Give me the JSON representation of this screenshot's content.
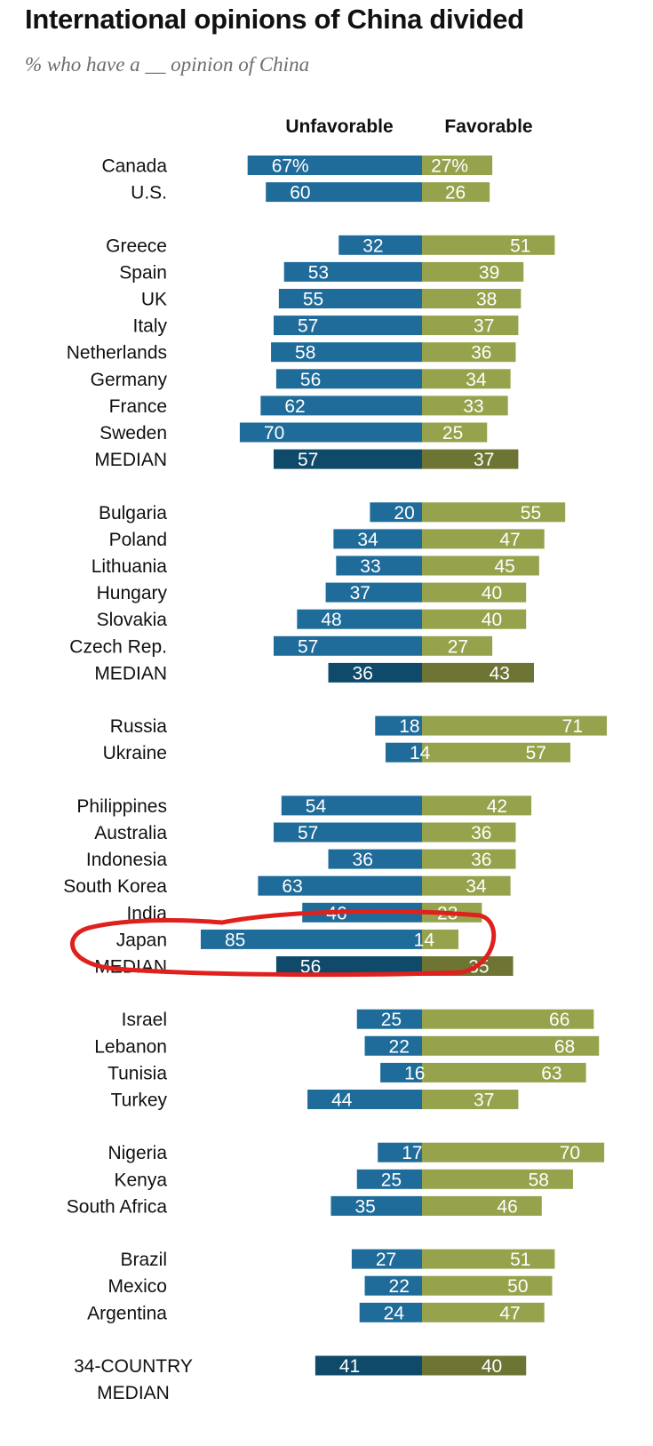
{
  "header": {
    "title": "International opinions of China divided",
    "subtitle": "% who have a __ opinion of China"
  },
  "colors": {
    "unfavorable": "#1f6b9a",
    "favorable": "#97a24c",
    "unfavorable_median": "#0f4a6b",
    "favorable_median": "#6e7434",
    "annotation": "#e0201c"
  },
  "chart_data": {
    "type": "bar",
    "orientation": "horizontal-diverging",
    "title": "International opinions of China divided",
    "subtitle": "% who have a __ opinion of China",
    "series": [
      {
        "name": "Unfavorable",
        "key": "unfav"
      },
      {
        "name": "Favorable",
        "key": "fav"
      }
    ],
    "value_suffix_first_row": "%",
    "groups": [
      {
        "rows": [
          {
            "label": "Canada",
            "unfav": 67,
            "fav": 27
          },
          {
            "label": "U.S.",
            "unfav": 60,
            "fav": 26
          }
        ]
      },
      {
        "rows": [
          {
            "label": "Greece",
            "unfav": 32,
            "fav": 51
          },
          {
            "label": "Spain",
            "unfav": 53,
            "fav": 39
          },
          {
            "label": "UK",
            "unfav": 55,
            "fav": 38
          },
          {
            "label": "Italy",
            "unfav": 57,
            "fav": 37
          },
          {
            "label": "Netherlands",
            "unfav": 58,
            "fav": 36
          },
          {
            "label": "Germany",
            "unfav": 56,
            "fav": 34
          },
          {
            "label": "France",
            "unfav": 62,
            "fav": 33
          },
          {
            "label": "Sweden",
            "unfav": 70,
            "fav": 25
          },
          {
            "label": "MEDIAN",
            "unfav": 57,
            "fav": 37,
            "median": true
          }
        ]
      },
      {
        "rows": [
          {
            "label": "Bulgaria",
            "unfav": 20,
            "fav": 55
          },
          {
            "label": "Poland",
            "unfav": 34,
            "fav": 47
          },
          {
            "label": "Lithuania",
            "unfav": 33,
            "fav": 45
          },
          {
            "label": "Hungary",
            "unfav": 37,
            "fav": 40
          },
          {
            "label": "Slovakia",
            "unfav": 48,
            "fav": 40
          },
          {
            "label": "Czech Rep.",
            "unfav": 57,
            "fav": 27
          },
          {
            "label": "MEDIAN",
            "unfav": 36,
            "fav": 43,
            "median": true
          }
        ]
      },
      {
        "rows": [
          {
            "label": "Russia",
            "unfav": 18,
            "fav": 71
          },
          {
            "label": "Ukraine",
            "unfav": 14,
            "fav": 57
          }
        ]
      },
      {
        "rows": [
          {
            "label": "Philippines",
            "unfav": 54,
            "fav": 42
          },
          {
            "label": "Australia",
            "unfav": 57,
            "fav": 36
          },
          {
            "label": "Indonesia",
            "unfav": 36,
            "fav": 36
          },
          {
            "label": "South Korea",
            "unfav": 63,
            "fav": 34
          },
          {
            "label": "India",
            "unfav": 46,
            "fav": 23
          },
          {
            "label": "Japan",
            "unfav": 85,
            "fav": 14,
            "highlight": true
          },
          {
            "label": "MEDIAN",
            "unfav": 56,
            "fav": 35,
            "median": true
          }
        ]
      },
      {
        "rows": [
          {
            "label": "Israel",
            "unfav": 25,
            "fav": 66
          },
          {
            "label": "Lebanon",
            "unfav": 22,
            "fav": 68
          },
          {
            "label": "Tunisia",
            "unfav": 16,
            "fav": 63
          },
          {
            "label": "Turkey",
            "unfav": 44,
            "fav": 37
          }
        ]
      },
      {
        "rows": [
          {
            "label": "Nigeria",
            "unfav": 17,
            "fav": 70
          },
          {
            "label": "Kenya",
            "unfav": 25,
            "fav": 58
          },
          {
            "label": "South Africa",
            "unfav": 35,
            "fav": 46
          }
        ]
      },
      {
        "rows": [
          {
            "label": "Brazil",
            "unfav": 27,
            "fav": 51
          },
          {
            "label": "Mexico",
            "unfav": 22,
            "fav": 50
          },
          {
            "label": "Argentina",
            "unfav": 24,
            "fav": 47
          }
        ]
      },
      {
        "rows": [
          {
            "label": "34-COUNTRY",
            "label_line2": "MEDIAN",
            "unfav": 41,
            "fav": 40,
            "median": true
          }
        ]
      }
    ],
    "annotation": "red hand-drawn ellipse around Japan row"
  }
}
